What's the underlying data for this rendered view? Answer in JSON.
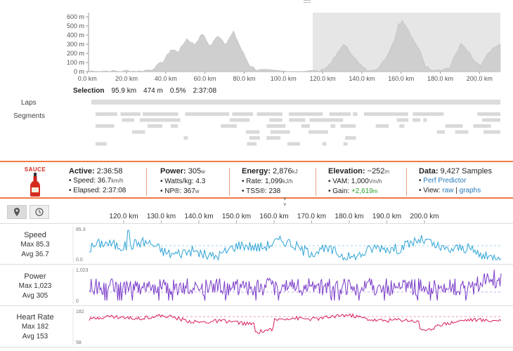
{
  "elevation": {
    "y_ticks": [
      "600 m",
      "500 m",
      "400 m",
      "300 m",
      "200 m",
      "100 m",
      "0 m"
    ],
    "x_ticks": [
      "0.0 km",
      "20.0 km",
      "40.0 km",
      "60.0 km",
      "80.0 km",
      "100.0 km",
      "120.0 km",
      "140.0 km",
      "160.0 km",
      "180.0 km",
      "200.0 km"
    ]
  },
  "selection": {
    "label": "Selection",
    "distance": "95.9 km",
    "elevation": "474 m",
    "grade": "0.5%",
    "time": "2:37:08"
  },
  "rows": {
    "laps": "Laps",
    "segments": "Segments"
  },
  "stats": {
    "logo_text": "SAUCE",
    "active": {
      "label": "Active:",
      "value": "2:36:58",
      "speed_label": "Speed:",
      "speed_value": "36.7",
      "speed_unit": "km/h",
      "elapsed_label": "Elapsed:",
      "elapsed_value": "2:37:08"
    },
    "power": {
      "label": "Power:",
      "value": "305",
      "unit": "w",
      "wkg_label": "Watts/kg:",
      "wkg_value": "4.3",
      "np_label": "NP®:",
      "np_value": "367",
      "np_unit": "w"
    },
    "energy": {
      "label": "Energy:",
      "value": "2,876",
      "unit": "kJ",
      "rate_label": "Rate:",
      "rate_value": "1,099",
      "rate_unit": "kJ/h",
      "tss_label": "TSS®:",
      "tss_value": "238"
    },
    "elevation": {
      "label": "Elevation:",
      "value": "~252",
      "unit": "m",
      "vam_label": "VAM:",
      "vam_value": "1,000",
      "vam_unit": "Vm/h",
      "gain_label": "Gain:",
      "gain_value": "+2,619",
      "gain_unit": "m"
    },
    "data": {
      "label": "Data:",
      "value": "9,427 Samples",
      "perf_link": "Perf Predictor",
      "view_label": "View:",
      "raw_link": "raw",
      "sep": "|",
      "graphs_link": "graphs"
    }
  },
  "timeline": {
    "x_ticks": [
      "120.0 km",
      "130.0 km",
      "140.0 km",
      "150.0 km",
      "160.0 km",
      "170.0 km",
      "180.0 km",
      "190.0 km",
      "200.0 km"
    ],
    "streams": [
      {
        "title": "Speed",
        "max_label": "Max 85.3",
        "avg_label": "Avg 36.7",
        "top_tick": "85.3",
        "bottom_tick": "0.0",
        "color": "#2fa3d6"
      },
      {
        "title": "Power",
        "max_label": "Max 1,023",
        "avg_label": "Avg 305",
        "top_tick": "1,023",
        "bottom_tick": "0",
        "color": "#7a3cc8"
      },
      {
        "title": "Heart Rate",
        "max_label": "Max 182",
        "avg_label": "Avg 153",
        "top_tick": "182",
        "bottom_tick": "58",
        "color": "#d81e5b"
      }
    ]
  },
  "colors": {
    "accent": "#f07a45",
    "elevation_fill": "#d6d6d6",
    "selection_bg": "#e6e6e6"
  }
}
